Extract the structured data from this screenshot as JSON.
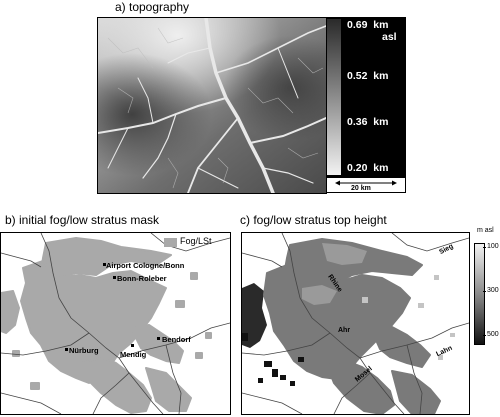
{
  "panel_a": {
    "title": "a) topography",
    "colorbar": {
      "ticks": [
        "0.69",
        "0.52",
        "0.36",
        "0.20"
      ],
      "unit": "km",
      "unit_sub": "asl"
    },
    "scalebar": {
      "label": "20 km"
    }
  },
  "panel_b": {
    "title": "b) initial fog/low stratus mask",
    "legend_label": "Fog/LSt",
    "places": [
      "Airport Cologne/Bonn",
      "Bonn-Roleber",
      "Bendorf",
      "Nürburg",
      "Mendig"
    ]
  },
  "panel_c": {
    "title": "c) fog/low stratus top height",
    "unit": "m asl",
    "ticks": [
      "100",
      "300",
      "500"
    ],
    "rivers": [
      "Sieg",
      "Rhine",
      "Ahr",
      "Lahn",
      "Mosel"
    ]
  },
  "colors": {
    "fog_mask": "#a9a9a9",
    "frame": "#000000",
    "river": "#444444"
  }
}
